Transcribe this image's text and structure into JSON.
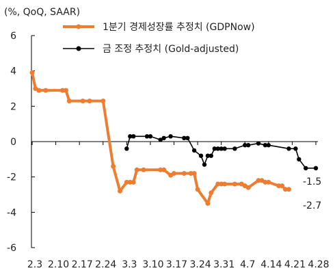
{
  "chart_data": {
    "type": "line",
    "unit_label": "(%, QoQ, SAAR)",
    "xlabel": "",
    "ylabel": "",
    "ylim": [
      -6,
      6
    ],
    "yticks": [
      "6",
      "4",
      "2",
      "0",
      "-2",
      "-4",
      "-6"
    ],
    "ytick_values": [
      6,
      4,
      2,
      0,
      -2,
      -4,
      -6
    ],
    "xticks": [
      "2.3",
      "2.10",
      "2.17",
      "2.24",
      "3.3",
      "3.10",
      "3.17",
      "3.24",
      "3.31",
      "4.7",
      "4.14",
      "4.21",
      "4.28"
    ],
    "xtick_days": [
      3,
      10,
      17,
      24,
      31,
      38,
      45,
      52,
      59,
      66,
      73,
      80,
      87
    ],
    "series": [
      {
        "name": "1분기 경제성장률 추정치 (GDPNow)",
        "color": "#ED7D31",
        "x": [
          3,
          4,
          5,
          7,
          12,
          13,
          14,
          18,
          20,
          24,
          27,
          29,
          31,
          32,
          33,
          34,
          36,
          41,
          42,
          44,
          45,
          48,
          50,
          51,
          52,
          55,
          56,
          58,
          59,
          60,
          63,
          65,
          66,
          67,
          70,
          71,
          72,
          73,
          76,
          77,
          78,
          79
        ],
        "values": [
          3.9,
          3.0,
          2.9,
          2.9,
          2.9,
          2.9,
          2.3,
          2.3,
          2.3,
          2.3,
          -1.4,
          -2.8,
          -2.3,
          -2.3,
          -2.3,
          -1.6,
          -1.6,
          -1.6,
          -1.6,
          -1.9,
          -1.8,
          -1.8,
          -1.8,
          -1.8,
          -2.7,
          -3.5,
          -2.9,
          -2.4,
          -2.4,
          -2.4,
          -2.4,
          -2.4,
          -2.5,
          -2.6,
          -2.2,
          -2.2,
          -2.3,
          -2.3,
          -2.5,
          -2.5,
          -2.7,
          -2.7
        ],
        "end_label": "-2.7"
      },
      {
        "name": "금 조정 추정치 (Gold-adjusted)",
        "color": "#000000",
        "x": [
          31,
          32,
          33,
          37,
          38,
          41,
          42,
          44,
          48,
          49,
          51,
          53,
          54,
          55,
          56,
          57,
          58,
          59,
          60,
          63,
          66,
          67,
          70,
          72,
          73,
          79,
          81,
          82,
          84,
          87
        ],
        "values": [
          -0.4,
          0.3,
          0.3,
          0.3,
          0.3,
          0.1,
          0.2,
          0.3,
          0.2,
          0.2,
          -0.5,
          -0.8,
          -1.3,
          -0.8,
          -0.8,
          -0.4,
          -0.4,
          -0.4,
          -0.4,
          -0.4,
          -0.2,
          -0.2,
          -0.1,
          -0.2,
          -0.2,
          -0.4,
          -0.4,
          -1.0,
          -1.5,
          -1.5
        ],
        "end_label": "-1.5"
      }
    ],
    "grid": false,
    "legend": "top"
  }
}
